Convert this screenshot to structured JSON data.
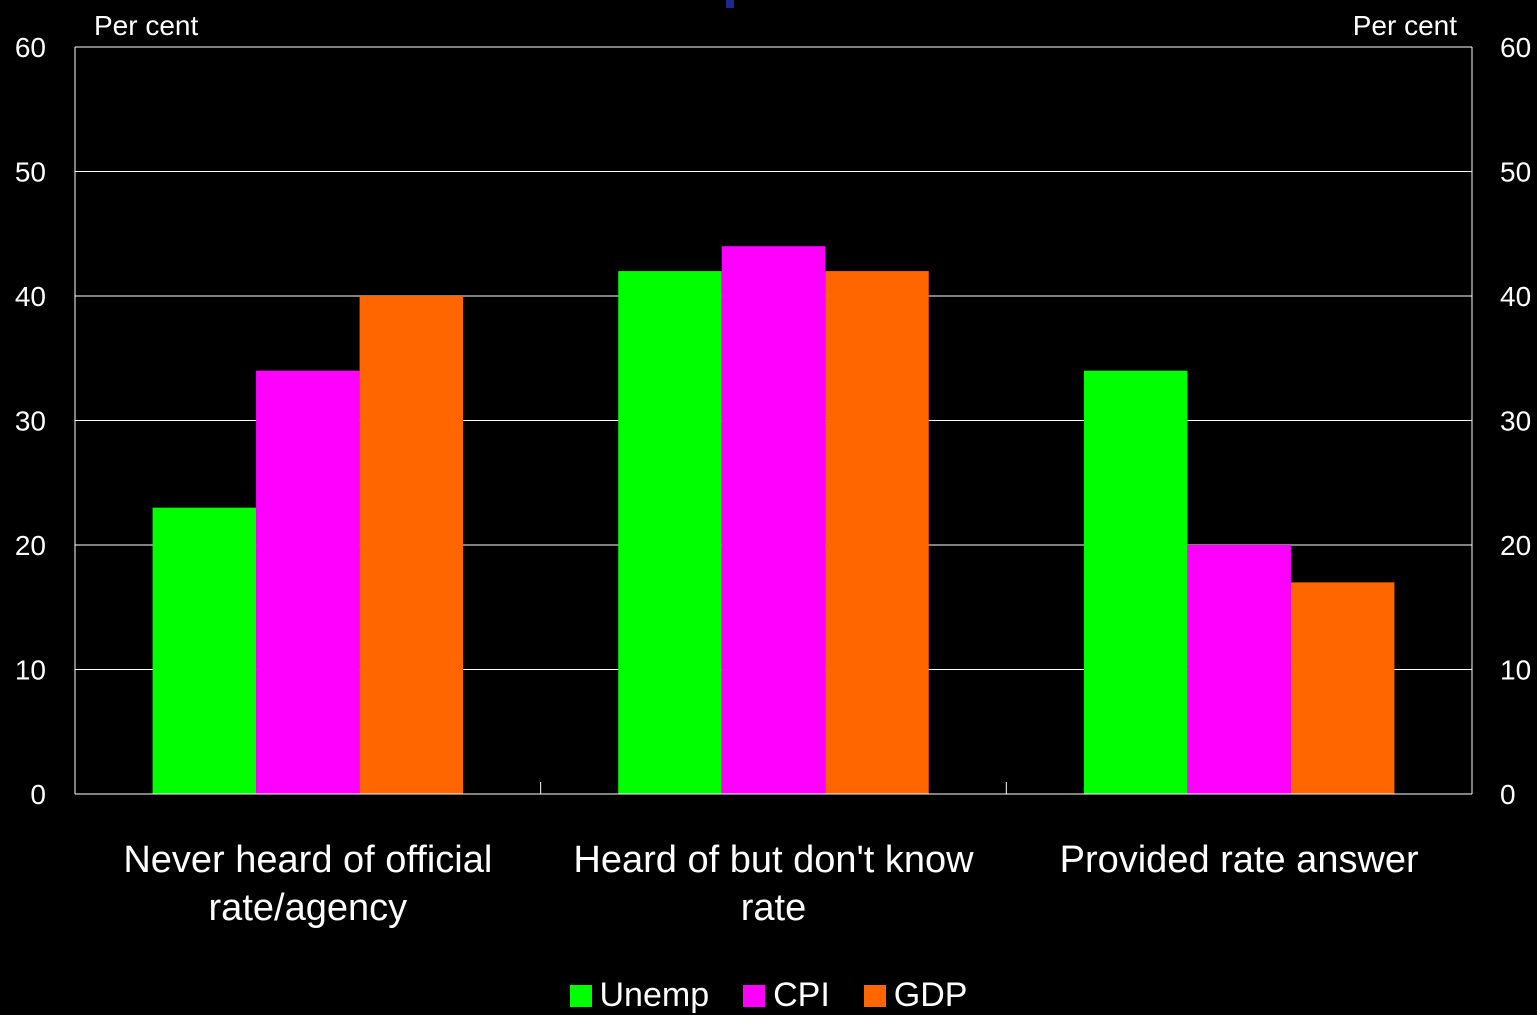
{
  "chart_data": {
    "type": "bar",
    "title": "",
    "ylabel_left": "Per cent",
    "ylabel_right": "Per cent",
    "ylim": [
      0,
      60
    ],
    "yticks": [
      0,
      10,
      20,
      30,
      40,
      50,
      60
    ],
    "grid": true,
    "legend_position": "bottom",
    "categories": [
      [
        "Never heard of official",
        "rate/agency"
      ],
      [
        "Heard of but don't know",
        "rate"
      ],
      [
        "Provided rate answer"
      ]
    ],
    "series": [
      {
        "name": "Unemp",
        "color": "#00ff00",
        "values": [
          23,
          42,
          34
        ]
      },
      {
        "name": "CPI",
        "color": "#ff00ff",
        "values": [
          34,
          44,
          20
        ]
      },
      {
        "name": "GDP",
        "color": "#ff6600",
        "values": [
          40,
          42,
          17
        ]
      }
    ]
  }
}
